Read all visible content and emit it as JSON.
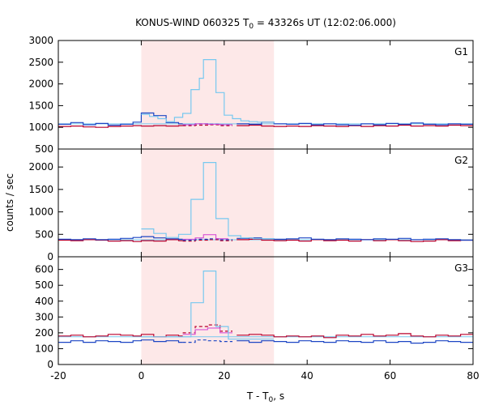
{
  "chart_data": {
    "type": "line",
    "title_main": "KONUS-WIND 060325 T",
    "title_sub": "0",
    "title_rest": " = 43326s UT (12:02:06.000)",
    "ylabel": "counts / sec",
    "xlabel_main": "T - T",
    "xlabel_sub": "0",
    "xlabel_rest": ", s",
    "xlim": [
      -20,
      80
    ],
    "x_ticks": [
      -20,
      0,
      20,
      40,
      60,
      80
    ],
    "x_tick_labels": [
      "-20",
      "0",
      "20",
      "40",
      "60",
      "80"
    ],
    "highlight": {
      "x_start": 0,
      "x_end": 32,
      "color": "#fde8e8"
    },
    "colors": {
      "light": "#77c8ef",
      "blue": "#1c45c4",
      "red": "#b8002c",
      "magenta": "#d33fd3"
    },
    "panels": [
      {
        "name": "G1",
        "ylim": [
          500,
          3000
        ],
        "y_ticks": [
          500,
          1000,
          1500,
          2000,
          2500,
          3000
        ],
        "y_tick_labels": [
          "500",
          "1000",
          "1500",
          "2000",
          "2500",
          "3000"
        ],
        "background": 1080,
        "light": [
          {
            "x": 0,
            "y": 1300
          },
          {
            "x": 2,
            "y": 1250
          },
          {
            "x": 4,
            "y": 1200
          },
          {
            "x": 6,
            "y": 1130
          },
          {
            "x": 8,
            "y": 1230
          },
          {
            "x": 10,
            "y": 1320
          },
          {
            "x": 12,
            "y": 1870
          },
          {
            "x": 14,
            "y": 2130
          },
          {
            "x": 15,
            "y": 2560
          },
          {
            "x": 18,
            "y": 1800
          },
          {
            "x": 20,
            "y": 1280
          },
          {
            "x": 22,
            "y": 1200
          },
          {
            "x": 24,
            "y": 1150
          },
          {
            "x": 26,
            "y": 1130
          },
          {
            "x": 28,
            "y": 1120
          },
          {
            "x": 32,
            "y": 1090
          }
        ],
        "blue_pre": [
          {
            "x": -20,
            "y": 1070
          },
          {
            "x": -17,
            "y": 1110
          },
          {
            "x": -14,
            "y": 1060
          },
          {
            "x": -11,
            "y": 1090
          },
          {
            "x": -8,
            "y": 1050
          },
          {
            "x": -5,
            "y": 1070
          },
          {
            "x": -2,
            "y": 1120
          },
          {
            "x": 0,
            "y": 1330
          },
          {
            "x": 3,
            "y": 1270
          },
          {
            "x": 6,
            "y": 1110
          },
          {
            "x": 9,
            "y": 1080
          }
        ],
        "blue_post": [
          {
            "x": 23,
            "y": 1080
          },
          {
            "x": 26,
            "y": 1070
          },
          {
            "x": 29,
            "y": 1120
          },
          {
            "x": 32,
            "y": 1080
          },
          {
            "x": 35,
            "y": 1070
          },
          {
            "x": 38,
            "y": 1090
          },
          {
            "x": 41,
            "y": 1060
          },
          {
            "x": 44,
            "y": 1080
          },
          {
            "x": 47,
            "y": 1060
          },
          {
            "x": 50,
            "y": 1050
          },
          {
            "x": 53,
            "y": 1080
          },
          {
            "x": 56,
            "y": 1060
          },
          {
            "x": 59,
            "y": 1090
          },
          {
            "x": 62,
            "y": 1070
          },
          {
            "x": 65,
            "y": 1100
          },
          {
            "x": 68,
            "y": 1070
          },
          {
            "x": 71,
            "y": 1060
          },
          {
            "x": 74,
            "y": 1080
          },
          {
            "x": 77,
            "y": 1070
          }
        ],
        "red_pre": [
          {
            "x": -20,
            "y": 1020
          },
          {
            "x": -17,
            "y": 1030
          },
          {
            "x": -14,
            "y": 1010
          },
          {
            "x": -11,
            "y": 1000
          },
          {
            "x": -8,
            "y": 1020
          },
          {
            "x": -5,
            "y": 1030
          },
          {
            "x": -2,
            "y": 1040
          },
          {
            "x": 0,
            "y": 1030
          },
          {
            "x": 3,
            "y": 1040
          },
          {
            "x": 6,
            "y": 1030
          },
          {
            "x": 9,
            "y": 1040
          }
        ],
        "red_post": [
          {
            "x": 23,
            "y": 1040
          },
          {
            "x": 26,
            "y": 1050
          },
          {
            "x": 29,
            "y": 1030
          },
          {
            "x": 32,
            "y": 1020
          },
          {
            "x": 35,
            "y": 1030
          },
          {
            "x": 38,
            "y": 1020
          },
          {
            "x": 41,
            "y": 1040
          },
          {
            "x": 44,
            "y": 1030
          },
          {
            "x": 47,
            "y": 1020
          },
          {
            "x": 50,
            "y": 1040
          },
          {
            "x": 53,
            "y": 1020
          },
          {
            "x": 56,
            "y": 1040
          },
          {
            "x": 59,
            "y": 1030
          },
          {
            "x": 62,
            "y": 1050
          },
          {
            "x": 65,
            "y": 1030
          },
          {
            "x": 68,
            "y": 1040
          },
          {
            "x": 71,
            "y": 1030
          },
          {
            "x": 74,
            "y": 1050
          },
          {
            "x": 77,
            "y": 1040
          }
        ],
        "blue_dash": [
          {
            "x": 10,
            "y": 1060
          },
          {
            "x": 13,
            "y": 1080
          },
          {
            "x": 16,
            "y": 1070
          },
          {
            "x": 19,
            "y": 1060
          }
        ],
        "red_dash": [
          {
            "x": 10,
            "y": 1040
          },
          {
            "x": 13,
            "y": 1050
          },
          {
            "x": 16,
            "y": 1060
          },
          {
            "x": 19,
            "y": 1040
          }
        ],
        "magenta": [
          {
            "x": 10,
            "y": 1060
          },
          {
            "x": 13,
            "y": 1080
          },
          {
            "x": 16,
            "y": 1070
          },
          {
            "x": 19,
            "y": 1060
          }
        ]
      },
      {
        "name": "G2",
        "ylim": [
          0,
          2400
        ],
        "y_ticks": [
          0,
          500,
          1000,
          1500,
          2000
        ],
        "y_tick_labels": [
          "0",
          "500",
          "1000",
          "1500",
          "2000"
        ],
        "background": 380,
        "light": [
          {
            "x": 0,
            "y": 620
          },
          {
            "x": 3,
            "y": 520
          },
          {
            "x": 6,
            "y": 430
          },
          {
            "x": 9,
            "y": 500
          },
          {
            "x": 12,
            "y": 1280
          },
          {
            "x": 15,
            "y": 2100
          },
          {
            "x": 18,
            "y": 850
          },
          {
            "x": 21,
            "y": 470
          },
          {
            "x": 24,
            "y": 420
          },
          {
            "x": 27,
            "y": 400
          },
          {
            "x": 32,
            "y": 390
          }
        ],
        "blue_pre": [
          {
            "x": -20,
            "y": 390
          },
          {
            "x": -17,
            "y": 380
          },
          {
            "x": -14,
            "y": 400
          },
          {
            "x": -11,
            "y": 380
          },
          {
            "x": -8,
            "y": 390
          },
          {
            "x": -5,
            "y": 410
          },
          {
            "x": -2,
            "y": 430
          },
          {
            "x": 0,
            "y": 450
          },
          {
            "x": 3,
            "y": 420
          },
          {
            "x": 6,
            "y": 400
          },
          {
            "x": 9,
            "y": 390
          }
        ],
        "blue_post": [
          {
            "x": 23,
            "y": 410
          },
          {
            "x": 26,
            "y": 420
          },
          {
            "x": 29,
            "y": 400
          },
          {
            "x": 32,
            "y": 390
          },
          {
            "x": 35,
            "y": 400
          },
          {
            "x": 38,
            "y": 420
          },
          {
            "x": 41,
            "y": 390
          },
          {
            "x": 44,
            "y": 380
          },
          {
            "x": 47,
            "y": 400
          },
          {
            "x": 50,
            "y": 390
          },
          {
            "x": 53,
            "y": 380
          },
          {
            "x": 56,
            "y": 400
          },
          {
            "x": 59,
            "y": 390
          },
          {
            "x": 62,
            "y": 410
          },
          {
            "x": 65,
            "y": 380
          },
          {
            "x": 68,
            "y": 390
          },
          {
            "x": 71,
            "y": 400
          },
          {
            "x": 74,
            "y": 380
          },
          {
            "x": 77,
            "y": 370
          }
        ],
        "red_pre": [
          {
            "x": -20,
            "y": 370
          },
          {
            "x": -17,
            "y": 360
          },
          {
            "x": -14,
            "y": 380
          },
          {
            "x": -11,
            "y": 370
          },
          {
            "x": -8,
            "y": 350
          },
          {
            "x": -5,
            "y": 360
          },
          {
            "x": -2,
            "y": 340
          },
          {
            "x": 0,
            "y": 360
          },
          {
            "x": 3,
            "y": 350
          },
          {
            "x": 6,
            "y": 380
          },
          {
            "x": 9,
            "y": 360
          }
        ],
        "red_post": [
          {
            "x": 23,
            "y": 380
          },
          {
            "x": 26,
            "y": 390
          },
          {
            "x": 29,
            "y": 370
          },
          {
            "x": 32,
            "y": 360
          },
          {
            "x": 35,
            "y": 370
          },
          {
            "x": 38,
            "y": 350
          },
          {
            "x": 41,
            "y": 380
          },
          {
            "x": 44,
            "y": 360
          },
          {
            "x": 47,
            "y": 370
          },
          {
            "x": 50,
            "y": 350
          },
          {
            "x": 53,
            "y": 380
          },
          {
            "x": 56,
            "y": 360
          },
          {
            "x": 59,
            "y": 380
          },
          {
            "x": 62,
            "y": 360
          },
          {
            "x": 65,
            "y": 340
          },
          {
            "x": 68,
            "y": 350
          },
          {
            "x": 71,
            "y": 380
          },
          {
            "x": 74,
            "y": 360
          },
          {
            "x": 77,
            "y": 370
          }
        ],
        "blue_dash": [
          {
            "x": 10,
            "y": 370
          },
          {
            "x": 13,
            "y": 390
          },
          {
            "x": 16,
            "y": 400
          },
          {
            "x": 19,
            "y": 380
          }
        ],
        "red_dash": [
          {
            "x": 10,
            "y": 350
          },
          {
            "x": 13,
            "y": 370
          },
          {
            "x": 16,
            "y": 380
          },
          {
            "x": 19,
            "y": 360
          }
        ],
        "magenta": [
          {
            "x": 10,
            "y": 390
          },
          {
            "x": 13,
            "y": 420
          },
          {
            "x": 15,
            "y": 490
          },
          {
            "x": 18,
            "y": 400
          }
        ]
      },
      {
        "name": "G3",
        "ylim": [
          0,
          680
        ],
        "y_ticks": [
          0,
          100,
          200,
          300,
          400,
          500,
          600
        ],
        "y_tick_labels": [
          "0",
          "100",
          "200",
          "300",
          "400",
          "500",
          "600"
        ],
        "background": 175,
        "light": [
          {
            "x": 0,
            "y": 175
          },
          {
            "x": 12,
            "y": 390
          },
          {
            "x": 15,
            "y": 590
          },
          {
            "x": 18,
            "y": 240
          },
          {
            "x": 21,
            "y": 160
          },
          {
            "x": 32,
            "y": 160
          }
        ],
        "blue_pre": [
          {
            "x": -20,
            "y": 140
          },
          {
            "x": -17,
            "y": 150
          },
          {
            "x": -14,
            "y": 140
          },
          {
            "x": -11,
            "y": 150
          },
          {
            "x": -8,
            "y": 145
          },
          {
            "x": -5,
            "y": 140
          },
          {
            "x": -2,
            "y": 150
          },
          {
            "x": 0,
            "y": 155
          },
          {
            "x": 3,
            "y": 145
          },
          {
            "x": 6,
            "y": 150
          },
          {
            "x": 9,
            "y": 140
          }
        ],
        "blue_post": [
          {
            "x": 23,
            "y": 150
          },
          {
            "x": 26,
            "y": 140
          },
          {
            "x": 29,
            "y": 150
          },
          {
            "x": 32,
            "y": 145
          },
          {
            "x": 35,
            "y": 140
          },
          {
            "x": 38,
            "y": 150
          },
          {
            "x": 41,
            "y": 145
          },
          {
            "x": 44,
            "y": 140
          },
          {
            "x": 47,
            "y": 150
          },
          {
            "x": 50,
            "y": 145
          },
          {
            "x": 53,
            "y": 140
          },
          {
            "x": 56,
            "y": 150
          },
          {
            "x": 59,
            "y": 140
          },
          {
            "x": 62,
            "y": 145
          },
          {
            "x": 65,
            "y": 135
          },
          {
            "x": 68,
            "y": 140
          },
          {
            "x": 71,
            "y": 150
          },
          {
            "x": 74,
            "y": 145
          },
          {
            "x": 77,
            "y": 140
          }
        ],
        "red_pre": [
          {
            "x": -20,
            "y": 180
          },
          {
            "x": -17,
            "y": 185
          },
          {
            "x": -14,
            "y": 175
          },
          {
            "x": -11,
            "y": 180
          },
          {
            "x": -8,
            "y": 190
          },
          {
            "x": -5,
            "y": 185
          },
          {
            "x": -2,
            "y": 180
          },
          {
            "x": 0,
            "y": 190
          },
          {
            "x": 3,
            "y": 175
          },
          {
            "x": 6,
            "y": 185
          },
          {
            "x": 9,
            "y": 180
          }
        ],
        "red_post": [
          {
            "x": 23,
            "y": 185
          },
          {
            "x": 26,
            "y": 190
          },
          {
            "x": 29,
            "y": 185
          },
          {
            "x": 32,
            "y": 175
          },
          {
            "x": 35,
            "y": 180
          },
          {
            "x": 38,
            "y": 175
          },
          {
            "x": 41,
            "y": 180
          },
          {
            "x": 44,
            "y": 170
          },
          {
            "x": 47,
            "y": 185
          },
          {
            "x": 50,
            "y": 180
          },
          {
            "x": 53,
            "y": 190
          },
          {
            "x": 56,
            "y": 180
          },
          {
            "x": 59,
            "y": 185
          },
          {
            "x": 62,
            "y": 195
          },
          {
            "x": 65,
            "y": 180
          },
          {
            "x": 68,
            "y": 175
          },
          {
            "x": 71,
            "y": 185
          },
          {
            "x": 74,
            "y": 180
          },
          {
            "x": 77,
            "y": 190
          }
        ],
        "blue_dash": [
          {
            "x": 10,
            "y": 140
          },
          {
            "x": 13,
            "y": 155
          },
          {
            "x": 16,
            "y": 150
          },
          {
            "x": 19,
            "y": 145
          }
        ],
        "red_dash": [
          {
            "x": 10,
            "y": 200
          },
          {
            "x": 13,
            "y": 240
          },
          {
            "x": 16,
            "y": 250
          },
          {
            "x": 19,
            "y": 210
          }
        ],
        "magenta": [
          {
            "x": 10,
            "y": 190
          },
          {
            "x": 13,
            "y": 220
          },
          {
            "x": 16,
            "y": 230
          },
          {
            "x": 19,
            "y": 200
          }
        ]
      }
    ]
  }
}
